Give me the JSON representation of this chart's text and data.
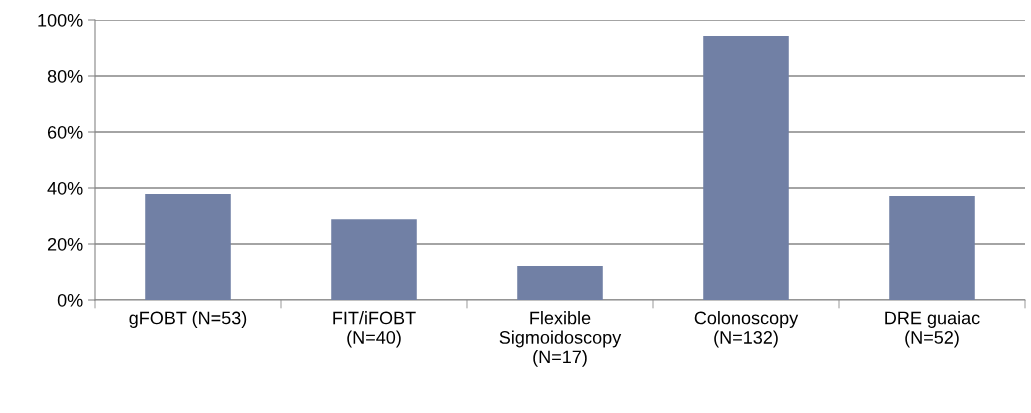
{
  "chart_data": {
    "type": "bar",
    "categories": [
      "gFOBT (N=53)",
      "FIT/iFOBT\n(N=40)",
      "Flexible\nSigmoidoscopy\n(N=17)",
      "Colonoscopy\n(N=132)",
      "DRE guaiac\n(N=52)"
    ],
    "values": [
      37.9,
      28.8,
      12.1,
      94.3,
      37.1
    ],
    "color": "#7180a5",
    "ylim": [
      0,
      100
    ],
    "yticks": [
      {
        "value": 0,
        "label": "0%"
      },
      {
        "value": 20,
        "label": "20%"
      },
      {
        "value": 40,
        "label": "40%"
      },
      {
        "value": 60,
        "label": "60%"
      },
      {
        "value": 80,
        "label": "80%"
      },
      {
        "value": 100,
        "label": "100%"
      }
    ],
    "grid": "y"
  }
}
